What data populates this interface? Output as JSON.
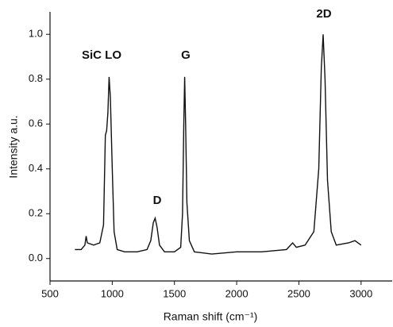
{
  "chart_data": {
    "type": "line",
    "x_label": "Raman shift (cm⁻¹)",
    "y_label": "Intensity a.u.",
    "annotations": [
      "SiC LO",
      "D",
      "G",
      "2D"
    ],
    "x": [
      700,
      750,
      780,
      790,
      800,
      850,
      900,
      930,
      945,
      955,
      965,
      975,
      985,
      1000,
      1015,
      1040,
      1100,
      1200,
      1280,
      1310,
      1330,
      1345,
      1360,
      1380,
      1420,
      1500,
      1550,
      1565,
      1575,
      1582,
      1590,
      1600,
      1620,
      1660,
      1800,
      2000,
      2200,
      2400,
      2450,
      2480,
      2550,
      2620,
      2660,
      2680,
      2695,
      2710,
      2730,
      2760,
      2800,
      2900,
      2950,
      3000
    ],
    "series": [
      {
        "color": "#111111",
        "values": [
          0.04,
          0.04,
          0.06,
          0.1,
          0.07,
          0.06,
          0.07,
          0.15,
          0.55,
          0.57,
          0.65,
          0.81,
          0.72,
          0.4,
          0.12,
          0.04,
          0.03,
          0.03,
          0.04,
          0.08,
          0.16,
          0.18,
          0.14,
          0.06,
          0.03,
          0.03,
          0.05,
          0.2,
          0.6,
          0.81,
          0.6,
          0.25,
          0.08,
          0.03,
          0.02,
          0.03,
          0.03,
          0.04,
          0.07,
          0.05,
          0.06,
          0.12,
          0.4,
          0.85,
          1.0,
          0.8,
          0.35,
          0.12,
          0.06,
          0.07,
          0.08,
          0.06
        ]
      }
    ],
    "xlim": [
      500,
      3250
    ],
    "ylim": [
      -0.1,
      1.1
    ],
    "xticks": [
      500,
      1000,
      1500,
      2000,
      2500,
      3000
    ],
    "yticks": [
      {
        "value": 0,
        "label": "0.0"
      },
      0.2,
      0.4,
      0.6,
      0.8,
      {
        "value": 1,
        "label": "1.0"
      }
    ]
  }
}
